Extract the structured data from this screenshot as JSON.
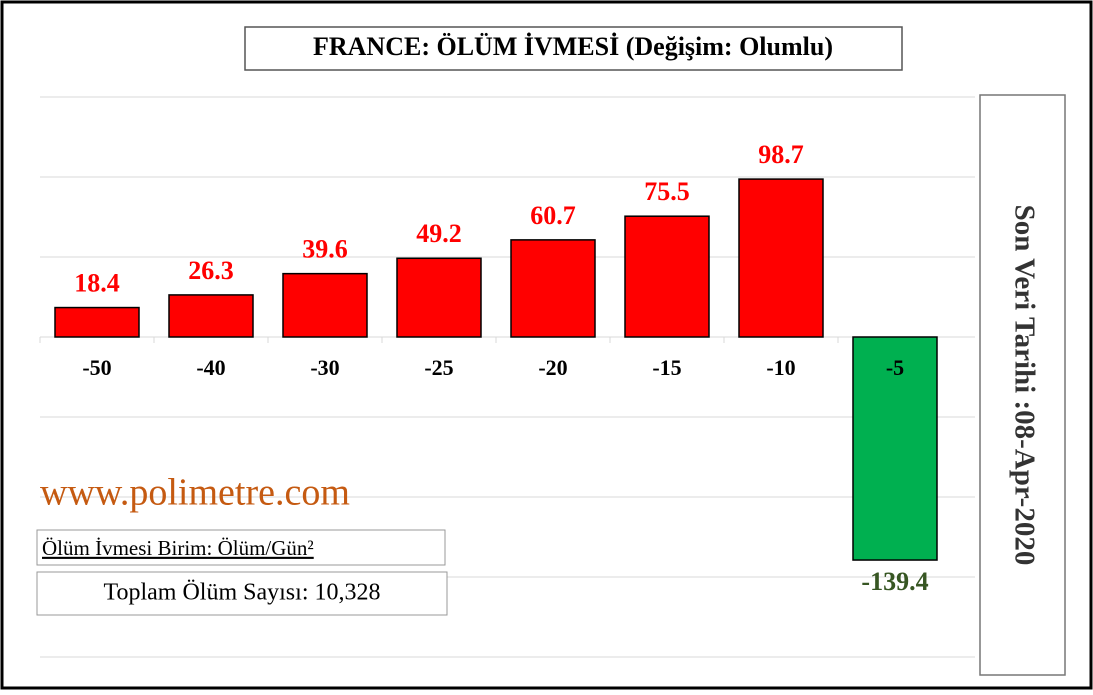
{
  "chart_data": {
    "type": "bar",
    "title": "FRANCE:  ÖLÜM İVMESİ  (Değişim: Olumlu)",
    "side_note": "Son Veri Tarihi :08-Apr-2020",
    "watermark": "www.polimetre.com",
    "unit_note": "Ölüm İvmesi Birim: Ölüm/Gün²",
    "total_note": "Toplam Ölüm Sayısı: 10,328",
    "categories": [
      "-50",
      "-40",
      "-30",
      "-25",
      "-20",
      "-15",
      "-10",
      "-5"
    ],
    "values": [
      18.4,
      26.3,
      39.6,
      49.2,
      60.7,
      75.5,
      98.7,
      -139.4
    ],
    "colors": [
      "#ff0000",
      "#ff0000",
      "#ff0000",
      "#ff0000",
      "#ff0000",
      "#ff0000",
      "#ff0000",
      "#00b050"
    ],
    "label_colors": [
      "#ff0000",
      "#ff0000",
      "#ff0000",
      "#ff0000",
      "#ff0000",
      "#ff0000",
      "#ff0000",
      "#375623"
    ],
    "ylim": [
      -200,
      150
    ],
    "yticks": [
      -200,
      -150,
      -100,
      -50,
      0,
      50,
      100,
      150
    ],
    "grid": true
  }
}
